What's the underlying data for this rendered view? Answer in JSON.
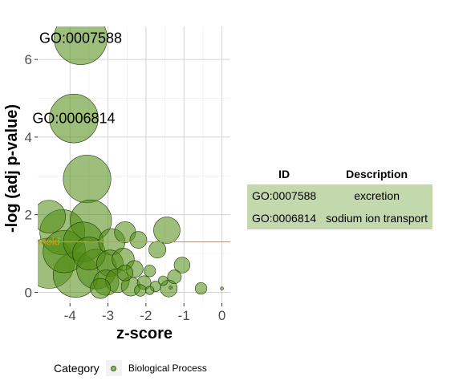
{
  "chart_data": {
    "type": "scatter",
    "xlabel": "z-score",
    "ylabel": "-log (adj p-value)",
    "xlim": [
      -4.85,
      0.22
    ],
    "ylim": [
      -0.28,
      6.85
    ],
    "x_ticks": [
      -4,
      -3,
      -2,
      -1,
      0
    ],
    "y_ticks": [
      0,
      2,
      4,
      6
    ],
    "x_tick_labels": [
      "-4",
      "-3",
      "-2",
      "-1",
      "0"
    ],
    "y_tick_labels": [
      "0",
      "2",
      "4",
      "6"
    ],
    "grid": true,
    "threshold": {
      "value": 1.3,
      "label": "Threshold",
      "color": "#d4a017"
    },
    "fill_color": "#4f8a10",
    "point_size_unit": "radius_scale",
    "points": [
      {
        "x": -3.72,
        "y": 6.55,
        "s": 1.0
      },
      {
        "x": -3.9,
        "y": 4.48,
        "s": 0.92
      },
      {
        "x": -3.55,
        "y": 2.92,
        "s": 0.9
      },
      {
        "x": -4.55,
        "y": 1.95,
        "s": 0.62
      },
      {
        "x": -3.45,
        "y": 1.85,
        "s": 0.78
      },
      {
        "x": -4.2,
        "y": 1.55,
        "s": 0.85
      },
      {
        "x": -3.65,
        "y": 1.3,
        "s": 0.75
      },
      {
        "x": -4.55,
        "y": 0.75,
        "s": 0.95
      },
      {
        "x": -4.15,
        "y": 1.05,
        "s": 0.8
      },
      {
        "x": -3.85,
        "y": 0.45,
        "s": 0.85
      },
      {
        "x": -3.3,
        "y": 0.6,
        "s": 0.75
      },
      {
        "x": -3.5,
        "y": 1.0,
        "s": 0.62
      },
      {
        "x": -2.9,
        "y": 1.3,
        "s": 0.5
      },
      {
        "x": -2.55,
        "y": 1.55,
        "s": 0.4
      },
      {
        "x": -2.2,
        "y": 1.35,
        "s": 0.32
      },
      {
        "x": -1.45,
        "y": 1.6,
        "s": 0.5
      },
      {
        "x": -1.7,
        "y": 1.1,
        "s": 0.32
      },
      {
        "x": -2.95,
        "y": 0.75,
        "s": 0.5
      },
      {
        "x": -2.6,
        "y": 0.85,
        "s": 0.42
      },
      {
        "x": -2.3,
        "y": 0.6,
        "s": 0.32
      },
      {
        "x": -3.05,
        "y": 0.25,
        "s": 0.48
      },
      {
        "x": -2.75,
        "y": 0.3,
        "s": 0.45
      },
      {
        "x": -2.4,
        "y": 0.15,
        "s": 0.36
      },
      {
        "x": -2.05,
        "y": 0.25,
        "s": 0.26
      },
      {
        "x": -1.9,
        "y": 0.55,
        "s": 0.22
      },
      {
        "x": -1.75,
        "y": 0.15,
        "s": 0.2
      },
      {
        "x": -1.4,
        "y": 0.1,
        "s": 0.32
      },
      {
        "x": -1.25,
        "y": 0.4,
        "s": 0.26
      },
      {
        "x": -1.05,
        "y": 0.7,
        "s": 0.3
      },
      {
        "x": -0.55,
        "y": 0.1,
        "s": 0.22
      },
      {
        "x": -2.55,
        "y": 0.5,
        "s": 0.3
      },
      {
        "x": -3.2,
        "y": 0.1,
        "s": 0.38
      },
      {
        "x": -1.55,
        "y": 0.3,
        "s": 0.18
      },
      {
        "x": -1.9,
        "y": 0.05,
        "s": 0.16
      },
      {
        "x": -2.15,
        "y": 0.05,
        "s": 0.22
      },
      {
        "x": -1.35,
        "y": 0.12,
        "s": 0.06
      },
      {
        "x": 0.0,
        "y": 0.1,
        "s": 0.03
      }
    ],
    "annotations": [
      {
        "label": "GO:0007588",
        "x": -3.72,
        "y": 6.55
      },
      {
        "label": "GO:0006814",
        "x": -3.9,
        "y": 4.48
      }
    ]
  },
  "table": {
    "headers": [
      "ID",
      "Description"
    ],
    "rows": [
      [
        "GO:0007588",
        "excretion"
      ],
      [
        "GO:0006814",
        "sodium ion transport"
      ]
    ]
  },
  "legend": {
    "title": "Category",
    "label": "Biological Process"
  }
}
